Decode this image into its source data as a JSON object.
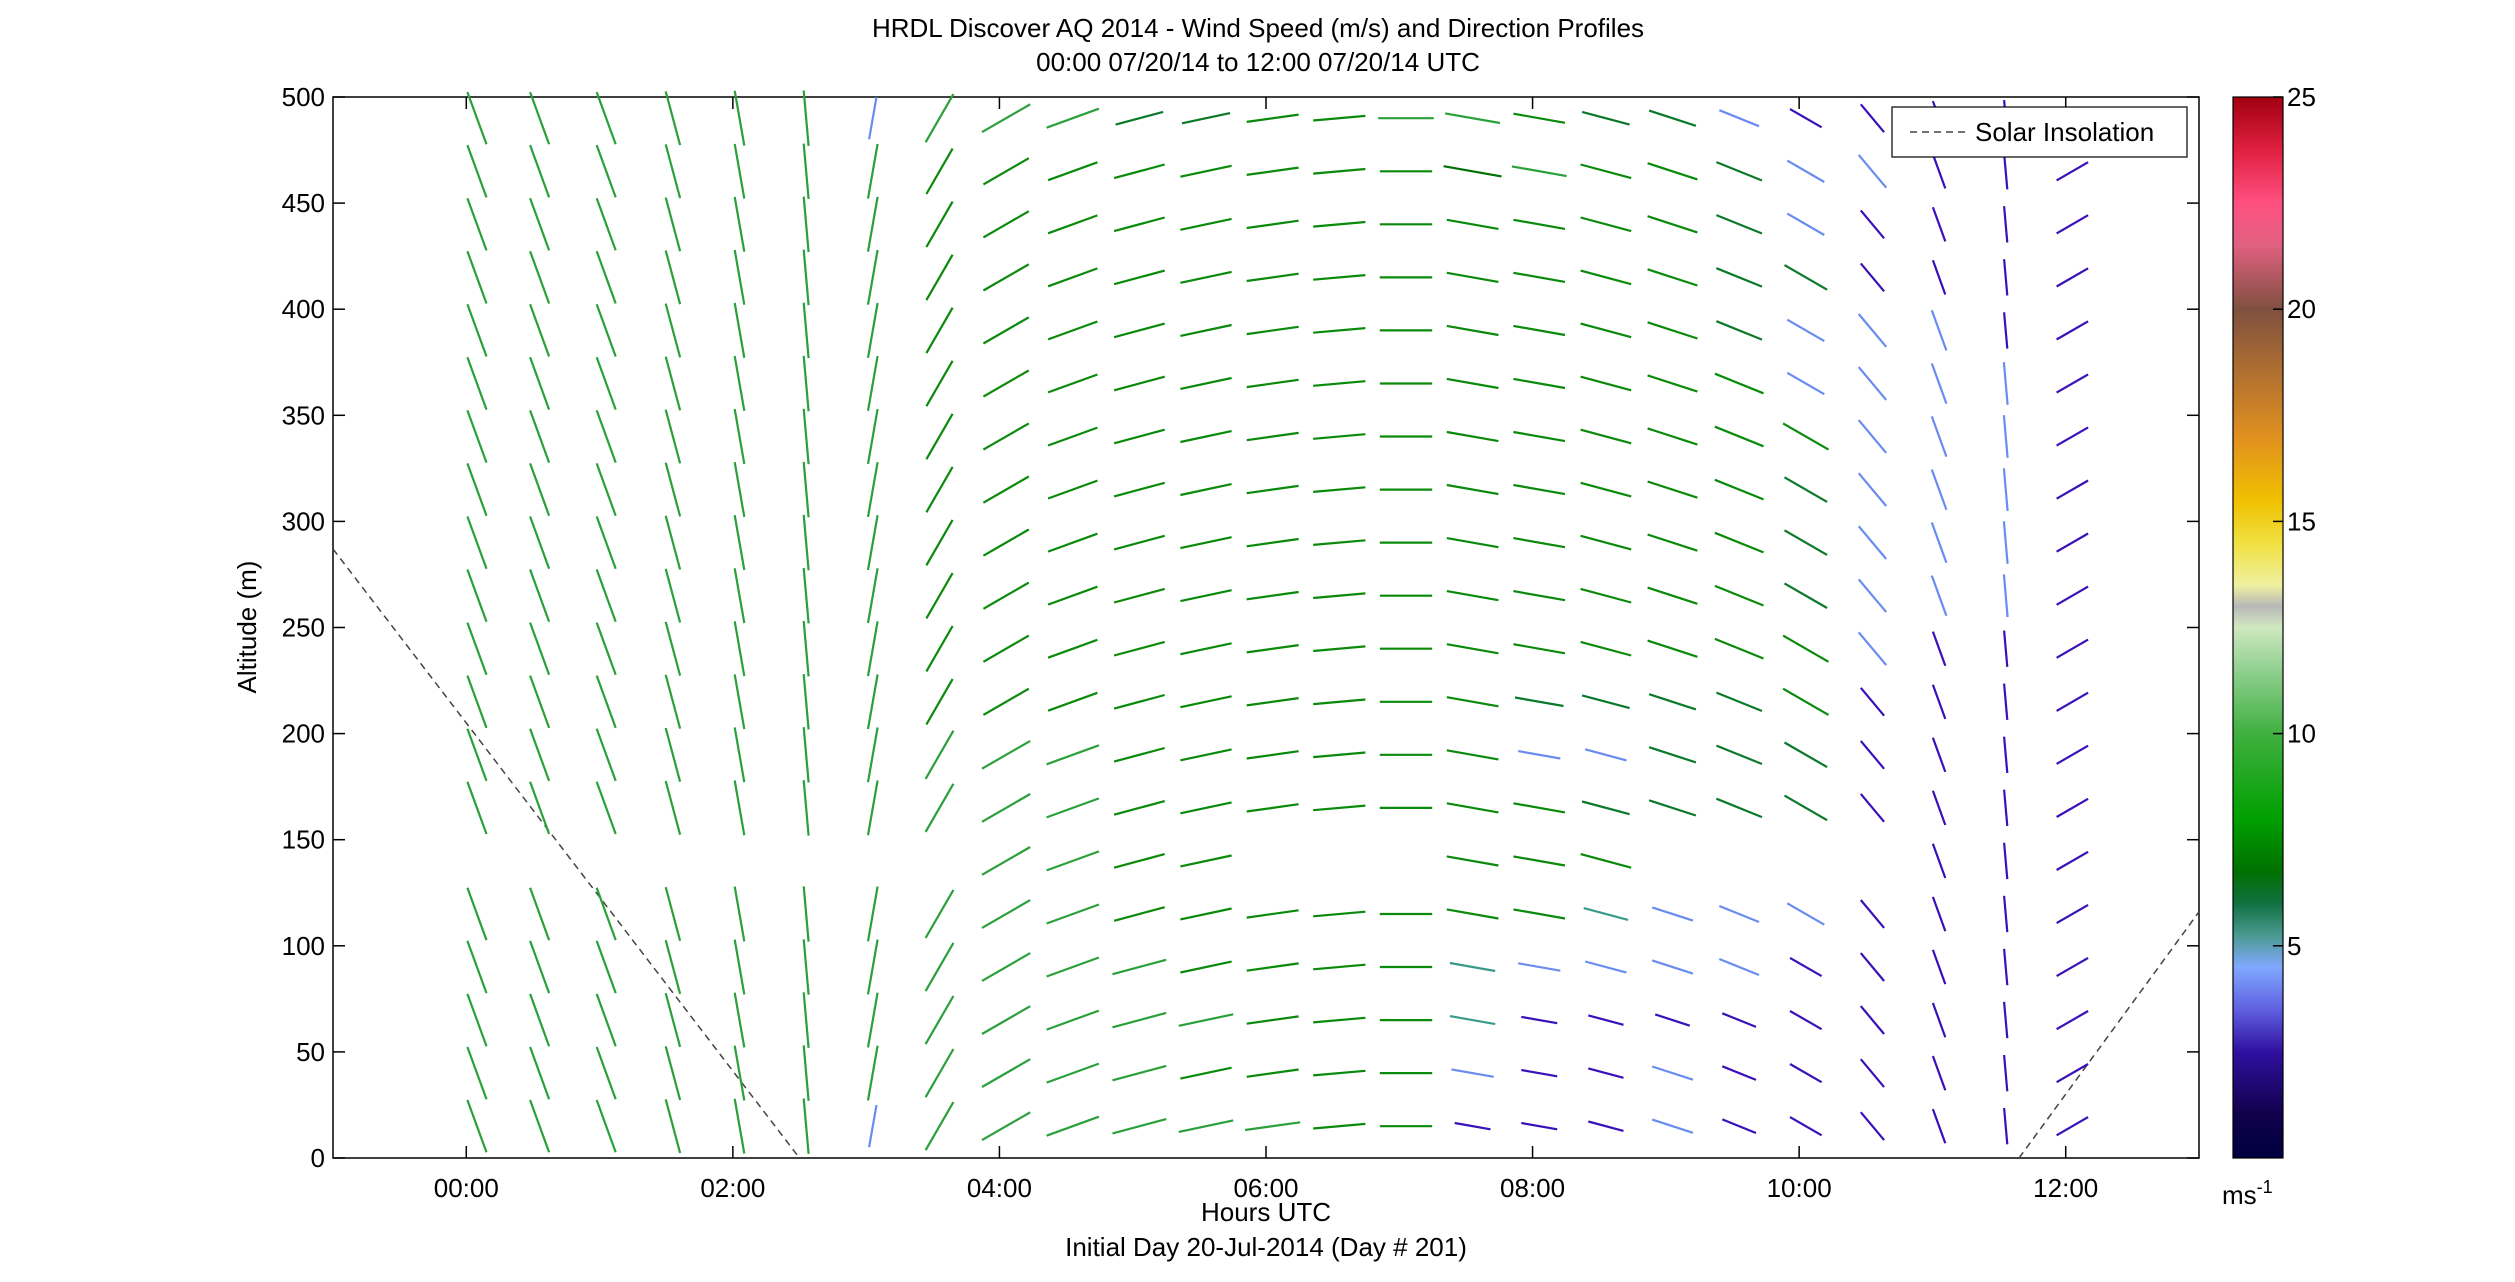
{
  "chart_data": {
    "type": "vector-profile",
    "title": "HRDL Discover AQ 2014 - Wind Speed (m/s) and Direction Profiles",
    "subtitle": "00:00 07/20/14 to 12:00 07/20/14  UTC",
    "xlabel": "Hours UTC",
    "xlabel2": "Initial Day 20-Jul-2014 (Day # 201)",
    "ylabel": "Altitude (m)",
    "xlim": [
      -1,
      13
    ],
    "ylim": [
      0,
      500
    ],
    "xticks": [
      0,
      2,
      4,
      6,
      8,
      10,
      12
    ],
    "xtick_labels": [
      "00:00",
      "02:00",
      "04:00",
      "06:00",
      "08:00",
      "10:00",
      "12:00"
    ],
    "yticks": [
      0,
      50,
      100,
      150,
      200,
      250,
      300,
      350,
      400,
      450,
      500
    ],
    "ytick_labels": [
      "0",
      "50",
      "100",
      "150",
      "200",
      "250",
      "300",
      "350",
      "400",
      "450",
      "500"
    ],
    "legend": {
      "label": "Solar Insolation",
      "placement": "top-right",
      "style": "dashed",
      "color": "#444444"
    },
    "colorbar": {
      "min": 0,
      "max": 25,
      "ticks": [
        5,
        10,
        15,
        20,
        25
      ],
      "tick_labels": [
        "5",
        "10",
        "15",
        "20",
        "25"
      ],
      "unit": "ms",
      "unit_exp": "-1"
    },
    "solar_insolation": [
      {
        "x": [
          -1.0,
          2.5
        ],
        "y": [
          287,
          0
        ]
      },
      {
        "x": [
          11.65,
          13.0
        ],
        "y": [
          0,
          116
        ]
      }
    ],
    "profile_times": [
      0.08,
      0.55,
      1.05,
      1.55,
      2.05,
      2.55,
      3.05,
      3.55,
      4.05,
      4.55,
      5.05,
      5.55,
      6.05,
      6.55,
      7.05,
      7.55,
      8.05,
      8.55,
      9.05,
      9.55,
      10.05,
      10.55,
      11.05,
      11.55,
      12.05
    ],
    "altitudes": [
      15,
      40,
      65,
      90,
      115,
      140,
      165,
      190,
      215,
      240,
      265,
      290,
      315,
      340,
      365,
      390,
      415,
      440,
      465,
      490
    ],
    "direction_deg": [
      [
        340,
        340,
        340,
        345,
        350,
        355,
        10,
        30,
        60,
        70,
        75,
        78,
        82,
        85,
        90,
        100,
        100,
        105,
        108,
        112,
        120,
        140,
        160,
        175,
        60
      ],
      [
        340,
        340,
        340,
        345,
        350,
        355,
        10,
        30,
        60,
        70,
        75,
        78,
        82,
        85,
        90,
        100,
        100,
        105,
        108,
        112,
        120,
        140,
        160,
        175,
        60
      ],
      [
        340,
        340,
        340,
        345,
        350,
        355,
        10,
        30,
        60,
        70,
        75,
        78,
        82,
        85,
        90,
        100,
        100,
        105,
        108,
        112,
        120,
        140,
        160,
        175,
        60
      ],
      [
        340,
        340,
        340,
        345,
        350,
        355,
        10,
        30,
        60,
        70,
        75,
        78,
        82,
        85,
        90,
        100,
        100,
        105,
        108,
        112,
        120,
        140,
        160,
        175,
        60
      ],
      [
        340,
        340,
        340,
        345,
        350,
        355,
        10,
        30,
        60,
        70,
        75,
        78,
        82,
        85,
        90,
        100,
        100,
        105,
        108,
        112,
        120,
        140,
        160,
        175,
        60
      ],
      [
        340,
        340,
        340,
        345,
        350,
        355,
        10,
        30,
        60,
        70,
        75,
        78,
        82,
        85,
        90,
        100,
        100,
        105,
        108,
        112,
        120,
        140,
        160,
        175,
        60
      ],
      [
        340,
        340,
        340,
        345,
        350,
        355,
        10,
        30,
        60,
        70,
        75,
        78,
        82,
        85,
        90,
        100,
        100,
        105,
        108,
        112,
        120,
        140,
        160,
        175,
        60
      ],
      [
        340,
        340,
        340,
        345,
        350,
        355,
        10,
        30,
        60,
        70,
        75,
        78,
        82,
        85,
        90,
        100,
        100,
        105,
        108,
        112,
        120,
        140,
        160,
        175,
        60
      ],
      [
        340,
        340,
        340,
        345,
        350,
        355,
        10,
        30,
        60,
        70,
        75,
        78,
        82,
        85,
        90,
        100,
        100,
        105,
        108,
        112,
        120,
        140,
        160,
        175,
        60
      ],
      [
        340,
        340,
        340,
        345,
        350,
        355,
        10,
        30,
        60,
        70,
        75,
        78,
        82,
        85,
        90,
        100,
        100,
        105,
        108,
        112,
        120,
        140,
        160,
        175,
        60
      ],
      [
        340,
        340,
        340,
        345,
        350,
        355,
        10,
        30,
        60,
        70,
        75,
        78,
        82,
        85,
        90,
        100,
        100,
        105,
        108,
        112,
        120,
        140,
        160,
        175,
        60
      ],
      [
        340,
        340,
        340,
        345,
        350,
        355,
        10,
        30,
        60,
        70,
        75,
        78,
        82,
        85,
        90,
        100,
        100,
        105,
        108,
        112,
        120,
        140,
        160,
        175,
        60
      ],
      [
        340,
        340,
        340,
        345,
        350,
        355,
        10,
        30,
        60,
        70,
        75,
        78,
        82,
        85,
        90,
        100,
        100,
        105,
        108,
        112,
        120,
        140,
        160,
        175,
        60
      ],
      [
        340,
        340,
        340,
        345,
        350,
        355,
        10,
        30,
        60,
        70,
        75,
        78,
        82,
        85,
        90,
        100,
        100,
        105,
        108,
        112,
        120,
        140,
        160,
        175,
        60
      ],
      [
        340,
        340,
        340,
        345,
        350,
        355,
        10,
        30,
        60,
        70,
        75,
        78,
        82,
        85,
        90,
        100,
        100,
        105,
        108,
        112,
        120,
        140,
        160,
        175,
        60
      ],
      [
        340,
        340,
        340,
        345,
        350,
        355,
        10,
        30,
        60,
        70,
        75,
        78,
        82,
        85,
        90,
        100,
        100,
        105,
        108,
        112,
        120,
        140,
        160,
        175,
        60
      ],
      [
        340,
        340,
        340,
        345,
        350,
        355,
        10,
        30,
        60,
        70,
        75,
        78,
        82,
        85,
        90,
        100,
        100,
        105,
        108,
        112,
        120,
        140,
        160,
        175,
        60
      ],
      [
        340,
        340,
        340,
        345,
        350,
        355,
        10,
        30,
        60,
        70,
        75,
        78,
        82,
        85,
        90,
        100,
        100,
        105,
        108,
        112,
        120,
        140,
        160,
        175,
        60
      ],
      [
        340,
        340,
        340,
        345,
        350,
        355,
        10,
        30,
        60,
        70,
        75,
        78,
        82,
        85,
        90,
        100,
        100,
        105,
        108,
        112,
        120,
        140,
        160,
        175,
        60
      ],
      [
        340,
        340,
        340,
        345,
        350,
        355,
        10,
        30,
        60,
        70,
        75,
        78,
        82,
        85,
        90,
        100,
        100,
        105,
        108,
        112,
        120,
        140,
        160,
        175,
        60
      ]
    ],
    "speed_ms": [
      [
        8,
        8,
        8,
        8,
        8,
        8,
        4,
        8,
        8,
        8,
        8,
        8,
        8,
        7,
        7,
        2,
        2,
        2,
        4,
        2,
        2,
        2,
        2,
        2,
        2
      ],
      [
        8,
        8,
        8,
        8,
        8,
        8,
        8,
        8,
        8,
        8,
        8,
        7,
        7,
        7,
        7,
        4,
        2,
        2,
        4,
        2,
        2,
        2,
        2,
        2,
        2
      ],
      [
        8,
        8,
        8,
        8,
        8,
        8,
        8,
        8,
        8,
        8,
        8,
        8,
        7,
        7,
        7,
        5,
        2,
        2,
        2,
        2,
        2,
        2,
        2,
        2,
        2
      ],
      [
        8,
        8,
        8,
        8,
        8,
        8,
        8,
        8,
        8,
        8,
        8,
        7,
        7,
        7,
        7,
        5,
        4,
        4,
        4,
        4,
        2,
        2,
        2,
        2,
        2
      ],
      [
        8,
        8,
        8,
        8,
        8,
        8,
        8,
        8,
        8,
        8,
        7,
        7,
        7,
        7,
        7,
        7,
        7,
        5,
        4,
        4,
        4,
        2,
        2,
        2,
        2
      ],
      [
        8,
        8,
        8,
        8,
        8,
        8,
        8,
        8,
        8,
        8,
        7,
        7,
        7,
        7,
        7,
        7,
        7,
        7,
        7,
        7,
        7,
        2,
        2,
        2,
        2
      ],
      [
        8,
        8,
        8,
        8,
        8,
        8,
        8,
        8,
        8,
        8,
        7,
        7,
        7,
        7,
        7,
        7,
        7,
        6,
        6,
        6,
        6,
        2,
        2,
        2,
        2
      ],
      [
        8,
        8,
        8,
        8,
        8,
        8,
        8,
        8,
        8,
        8,
        7,
        7,
        7,
        7,
        7,
        7,
        4,
        4,
        6,
        6,
        6,
        2,
        2,
        2,
        2
      ],
      [
        8,
        8,
        8,
        8,
        8,
        8,
        8,
        7,
        7,
        7,
        7,
        7,
        7,
        7,
        7,
        7,
        6,
        6,
        6,
        6,
        7,
        2,
        2,
        2,
        2
      ],
      [
        8,
        8,
        8,
        8,
        8,
        8,
        8,
        7,
        7,
        7,
        7,
        7,
        7,
        7,
        7,
        7,
        7,
        7,
        7,
        7,
        7,
        4,
        2,
        2,
        2
      ],
      [
        8,
        8,
        8,
        8,
        8,
        8,
        8,
        7,
        7,
        7,
        7,
        7,
        7,
        7,
        7,
        7,
        7,
        7,
        7,
        7,
        6,
        4,
        4,
        4,
        2
      ],
      [
        8,
        8,
        8,
        8,
        8,
        8,
        8,
        7,
        7,
        7,
        7,
        7,
        7,
        7,
        7,
        7,
        7,
        7,
        7,
        7,
        6,
        4,
        4,
        4,
        2
      ],
      [
        8,
        8,
        8,
        8,
        8,
        8,
        8,
        7,
        7,
        7,
        7,
        7,
        7,
        7,
        7,
        7,
        7,
        7,
        7,
        7,
        6,
        4,
        4,
        4,
        2
      ],
      [
        8,
        8,
        8,
        8,
        8,
        8,
        8,
        7,
        7,
        7,
        7,
        7,
        7,
        7,
        7,
        7,
        7,
        7,
        7,
        7,
        7,
        4,
        4,
        4,
        2
      ],
      [
        8,
        8,
        8,
        8,
        8,
        8,
        8,
        7,
        7,
        7,
        7,
        7,
        7,
        7,
        7,
        7,
        7,
        7,
        7,
        7,
        4,
        4,
        4,
        4,
        2
      ],
      [
        8,
        8,
        8,
        8,
        8,
        8,
        8,
        7,
        7,
        7,
        7,
        7,
        7,
        7,
        7,
        7,
        7,
        7,
        7,
        6,
        4,
        4,
        4,
        2,
        2
      ],
      [
        8,
        8,
        8,
        8,
        8,
        8,
        8,
        7,
        7,
        7,
        7,
        7,
        7,
        7,
        7,
        7,
        7,
        7,
        7,
        6,
        6,
        2,
        2,
        2,
        2
      ],
      [
        8,
        8,
        8,
        8,
        8,
        8,
        8,
        7,
        7,
        7,
        7,
        7,
        7,
        7,
        7,
        7,
        7,
        7,
        7,
        6,
        4,
        2,
        2,
        2,
        2
      ],
      [
        8,
        8,
        8,
        8,
        8,
        8,
        8,
        7,
        7,
        7,
        7,
        7,
        7,
        7,
        7,
        9,
        8,
        7,
        7,
        6,
        4,
        4,
        2,
        2,
        2
      ],
      [
        8,
        8,
        8,
        8,
        8,
        8,
        4,
        8,
        8,
        8,
        6,
        6,
        7,
        7,
        8,
        8,
        7,
        6,
        6,
        4,
        2,
        2,
        2,
        2,
        2
      ]
    ],
    "missing": [
      {
        "t_index": [
          6,
          7,
          8,
          9,
          10,
          11,
          12,
          13,
          14,
          15,
          16,
          17,
          18,
          19,
          20,
          21,
          22,
          23,
          24
        ],
        "alt_index": []
      },
      {
        "t_index": [
          0,
          1,
          2,
          3,
          4,
          5,
          6,
          7,
          12,
          13,
          14,
          18,
          19,
          20,
          21
        ],
        "alt_index": [
          5
        ]
      }
    ]
  }
}
